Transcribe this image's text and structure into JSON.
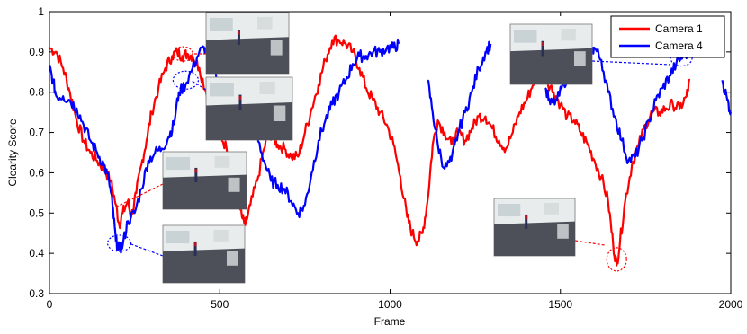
{
  "chart_data": {
    "type": "line",
    "title": "",
    "xlabel": "Frame",
    "ylabel": "Clearity Score",
    "xlim": [
      0,
      2000
    ],
    "ylim": [
      0.3,
      1
    ],
    "xticks": [
      0,
      500,
      1000,
      1500,
      2000
    ],
    "xtick_labels": [
      "0",
      "500",
      "1000",
      "1500",
      "2000"
    ],
    "yticks": [
      0.3,
      0.4,
      0.5,
      0.6,
      0.7,
      0.8,
      0.9,
      1
    ],
    "ytick_labels": [
      "0.3",
      "0.4",
      "0.5",
      "0.6",
      "0.7",
      "0.8",
      "0.9",
      "1"
    ],
    "grid": false,
    "legend_position": "top-right",
    "series": [
      {
        "name": "Camera 1",
        "color": "#ff0000",
        "points": [
          [
            0,
            0.91
          ],
          [
            20,
            0.9
          ],
          [
            40,
            0.86
          ],
          [
            60,
            0.8
          ],
          [
            80,
            0.73
          ],
          [
            100,
            0.68
          ],
          [
            120,
            0.65
          ],
          [
            140,
            0.63
          ],
          [
            160,
            0.61
          ],
          [
            180,
            0.58
          ],
          [
            195,
            0.52
          ],
          [
            205,
            0.47
          ],
          [
            215,
            0.5
          ],
          [
            230,
            0.53
          ],
          [
            240,
            0.49
          ],
          [
            255,
            0.55
          ],
          [
            270,
            0.62
          ],
          [
            285,
            0.68
          ],
          [
            300,
            0.75
          ],
          [
            320,
            0.81
          ],
          [
            340,
            0.86
          ],
          [
            360,
            0.89
          ],
          [
            375,
            0.9
          ],
          [
            390,
            0.89
          ],
          [
            405,
            0.895
          ],
          [
            420,
            0.89
          ],
          [
            440,
            0.86
          ],
          [
            460,
            0.8
          ],
          [
            480,
            0.74
          ],
          [
            500,
            0.7
          ],
          [
            520,
            0.66
          ],
          [
            540,
            0.6
          ],
          [
            555,
            0.55
          ],
          [
            565,
            0.49
          ],
          [
            575,
            0.47
          ],
          [
            590,
            0.52
          ],
          [
            610,
            0.58
          ],
          [
            630,
            0.66
          ],
          [
            645,
            0.7
          ],
          [
            655,
            0.69
          ],
          [
            670,
            0.67
          ],
          [
            690,
            0.66
          ],
          [
            710,
            0.64
          ],
          [
            730,
            0.64
          ],
          [
            750,
            0.7
          ],
          [
            770,
            0.76
          ],
          [
            790,
            0.82
          ],
          [
            810,
            0.88
          ],
          [
            830,
            0.93
          ],
          [
            850,
            0.93
          ],
          [
            870,
            0.92
          ],
          [
            890,
            0.9
          ],
          [
            910,
            0.86
          ],
          [
            930,
            0.81
          ],
          [
            950,
            0.78
          ],
          [
            970,
            0.75
          ],
          [
            990,
            0.72
          ],
          [
            1010,
            0.67
          ],
          [
            1030,
            0.59
          ],
          [
            1050,
            0.49
          ],
          [
            1065,
            0.45
          ],
          [
            1080,
            0.43
          ],
          [
            1095,
            0.45
          ],
          [
            1110,
            0.53
          ],
          [
            1125,
            0.67
          ],
          [
            1140,
            0.73
          ],
          [
            1160,
            0.7
          ],
          [
            1180,
            0.67
          ],
          [
            1200,
            0.7
          ],
          [
            1220,
            0.68
          ],
          [
            1240,
            0.71
          ],
          [
            1260,
            0.74
          ],
          [
            1280,
            0.74
          ],
          [
            1300,
            0.71
          ],
          [
            1320,
            0.68
          ],
          [
            1340,
            0.66
          ],
          [
            1360,
            0.7
          ],
          [
            1380,
            0.75
          ],
          [
            1400,
            0.78
          ],
          [
            1420,
            0.82
          ],
          [
            1440,
            0.86
          ],
          [
            1460,
            0.83
          ],
          [
            1480,
            0.8
          ],
          [
            1500,
            0.77
          ],
          [
            1520,
            0.74
          ],
          [
            1540,
            0.73
          ],
          [
            1560,
            0.7
          ],
          [
            1580,
            0.67
          ],
          [
            1600,
            0.63
          ],
          [
            1620,
            0.59
          ],
          [
            1640,
            0.53
          ],
          [
            1655,
            0.42
          ],
          [
            1665,
            0.37
          ],
          [
            1675,
            0.43
          ],
          [
            1690,
            0.53
          ],
          [
            1710,
            0.62
          ],
          [
            1730,
            0.67
          ],
          [
            1750,
            0.72
          ],
          [
            1770,
            0.75
          ],
          [
            1790,
            0.75
          ],
          [
            1810,
            0.76
          ],
          [
            1830,
            0.77
          ],
          [
            1850,
            0.76
          ],
          [
            1870,
            0.79
          ],
          [
            1880,
            0.83
          ]
        ]
      },
      {
        "name": "Camera 4",
        "color": "#0000ff",
        "points": [
          [
            0,
            0.86
          ],
          [
            10,
            0.83
          ],
          [
            20,
            0.79
          ],
          [
            40,
            0.79
          ],
          [
            60,
            0.78
          ],
          [
            80,
            0.76
          ],
          [
            100,
            0.72
          ],
          [
            120,
            0.68
          ],
          [
            140,
            0.65
          ],
          [
            160,
            0.62
          ],
          [
            175,
            0.58
          ],
          [
            185,
            0.52
          ],
          [
            195,
            0.43
          ],
          [
            205,
            0.41
          ],
          [
            215,
            0.42
          ],
          [
            230,
            0.48
          ],
          [
            250,
            0.5
          ],
          [
            270,
            0.56
          ],
          [
            290,
            0.63
          ],
          [
            310,
            0.65
          ],
          [
            330,
            0.66
          ],
          [
            350,
            0.69
          ],
          [
            365,
            0.72
          ],
          [
            380,
            0.8
          ],
          [
            400,
            0.82
          ],
          [
            420,
            0.86
          ],
          [
            440,
            0.9
          ],
          [
            460,
            0.91
          ],
          [
            480,
            0.88
          ],
          [
            500,
            0.8
          ],
          [
            520,
            0.73
          ],
          [
            540,
            0.69
          ],
          [
            560,
            0.72
          ],
          [
            575,
            0.74
          ],
          [
            590,
            0.72
          ],
          [
            610,
            0.69
          ],
          [
            630,
            0.63
          ],
          [
            650,
            0.58
          ],
          [
            670,
            0.57
          ],
          [
            690,
            0.56
          ],
          [
            710,
            0.53
          ],
          [
            730,
            0.5
          ],
          [
            750,
            0.52
          ],
          [
            770,
            0.6
          ],
          [
            790,
            0.68
          ],
          [
            810,
            0.73
          ],
          [
            830,
            0.77
          ],
          [
            850,
            0.8
          ],
          [
            870,
            0.83
          ],
          [
            890,
            0.87
          ],
          [
            910,
            0.89
          ],
          [
            930,
            0.89
          ],
          [
            950,
            0.9
          ],
          [
            970,
            0.9
          ],
          [
            990,
            0.91
          ],
          [
            1010,
            0.91
          ],
          [
            1025,
            0.92
          ]
        ]
      },
      {
        "name": "Camera 4",
        "color": "#0000ff",
        "points": [
          [
            1110,
            0.83
          ],
          [
            1125,
            0.75
          ],
          [
            1140,
            0.67
          ],
          [
            1160,
            0.61
          ],
          [
            1180,
            0.63
          ],
          [
            1200,
            0.7
          ],
          [
            1220,
            0.75
          ],
          [
            1240,
            0.8
          ],
          [
            1260,
            0.86
          ],
          [
            1280,
            0.9
          ],
          [
            1295,
            0.92
          ]
        ]
      },
      {
        "name": "Camera 4",
        "color": "#0000ff",
        "points": [
          [
            1455,
            0.81
          ],
          [
            1470,
            0.77
          ],
          [
            1490,
            0.78
          ],
          [
            1510,
            0.82
          ],
          [
            1530,
            0.86
          ],
          [
            1550,
            0.88
          ],
          [
            1570,
            0.89
          ],
          [
            1590,
            0.9
          ],
          [
            1600,
            0.91
          ],
          [
            1620,
            0.88
          ],
          [
            1640,
            0.8
          ],
          [
            1660,
            0.74
          ],
          [
            1680,
            0.68
          ],
          [
            1700,
            0.63
          ],
          [
            1720,
            0.64
          ],
          [
            1740,
            0.68
          ],
          [
            1760,
            0.73
          ],
          [
            1780,
            0.78
          ],
          [
            1800,
            0.81
          ],
          [
            1820,
            0.84
          ],
          [
            1840,
            0.87
          ],
          [
            1860,
            0.89
          ],
          [
            1880,
            0.9
          ]
        ]
      },
      {
        "name": "Camera 4",
        "color": "#0000ff",
        "points": [
          [
            1975,
            0.83
          ],
          [
            1990,
            0.78
          ],
          [
            2000,
            0.75
          ]
        ]
      }
    ],
    "legend": [
      "Camera 1",
      "Camera 4"
    ]
  }
}
